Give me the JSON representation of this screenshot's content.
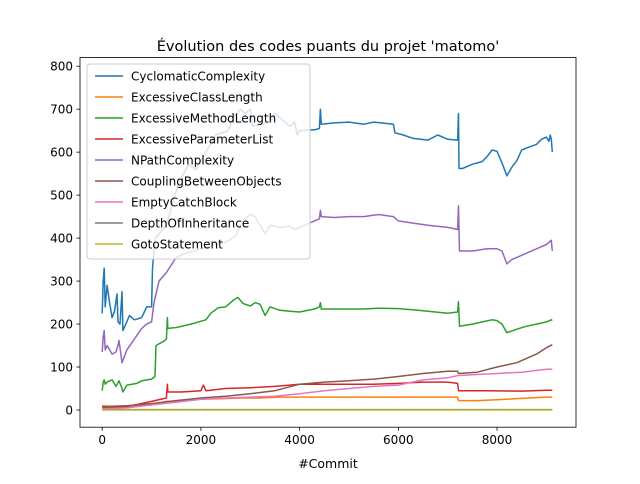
{
  "chart_data": {
    "type": "line",
    "title": "Évolution des codes puants du projet 'matomo'",
    "xlabel": "#Commit",
    "ylabel": "",
    "xlim": [
      -450,
      9600
    ],
    "ylim": [
      -40,
      820
    ],
    "x_ticks": [
      0,
      2000,
      4000,
      6000,
      8000
    ],
    "x_tick_labels": [
      "0",
      "2000",
      "4000",
      "6000",
      "8000"
    ],
    "y_ticks": [
      0,
      100,
      200,
      300,
      400,
      500,
      600,
      700,
      800
    ],
    "y_tick_labels": [
      "0",
      "100",
      "200",
      "300",
      "400",
      "500",
      "600",
      "700",
      "800"
    ],
    "grid": false,
    "legend_position": "top-left",
    "series": [
      {
        "name": "CyclomaticComplexity",
        "color": "#1f77b4",
        "points": [
          [
            0,
            225
          ],
          [
            20,
            300
          ],
          [
            40,
            330
          ],
          [
            60,
            240
          ],
          [
            100,
            290
          ],
          [
            150,
            250
          ],
          [
            200,
            215
          ],
          [
            250,
            230
          ],
          [
            300,
            270
          ],
          [
            320,
            205
          ],
          [
            360,
            200
          ],
          [
            400,
            275
          ],
          [
            420,
            185
          ],
          [
            480,
            200
          ],
          [
            550,
            220
          ],
          [
            650,
            210
          ],
          [
            800,
            215
          ],
          [
            900,
            240
          ],
          [
            1000,
            240
          ],
          [
            1020,
            330
          ],
          [
            1050,
            370
          ],
          [
            1080,
            400
          ],
          [
            1300,
            430
          ],
          [
            1400,
            470
          ],
          [
            1550,
            530
          ],
          [
            1700,
            560
          ],
          [
            1750,
            570
          ],
          [
            1900,
            560
          ],
          [
            2000,
            580
          ],
          [
            2150,
            610
          ],
          [
            2300,
            640
          ],
          [
            2550,
            650
          ],
          [
            2650,
            680
          ],
          [
            2800,
            700
          ],
          [
            2900,
            690
          ],
          [
            3000,
            700
          ],
          [
            3050,
            660
          ],
          [
            3200,
            665
          ],
          [
            3400,
            670
          ],
          [
            3500,
            690
          ],
          [
            3800,
            660
          ],
          [
            3900,
            670
          ],
          [
            3950,
            640
          ],
          [
            4000,
            650
          ],
          [
            4300,
            652
          ],
          [
            4400,
            655
          ],
          [
            4420,
            700
          ],
          [
            4440,
            665
          ],
          [
            4700,
            668
          ],
          [
            5000,
            670
          ],
          [
            5300,
            665
          ],
          [
            5500,
            670
          ],
          [
            5900,
            665
          ],
          [
            5930,
            645
          ],
          [
            6100,
            640
          ],
          [
            6300,
            632
          ],
          [
            6600,
            628
          ],
          [
            6800,
            640
          ],
          [
            7000,
            630
          ],
          [
            7200,
            628
          ],
          [
            7220,
            690
          ],
          [
            7230,
            562
          ],
          [
            7300,
            562
          ],
          [
            7500,
            572
          ],
          [
            7700,
            578
          ],
          [
            7800,
            590
          ],
          [
            7900,
            605
          ],
          [
            8000,
            602
          ],
          [
            8100,
            575
          ],
          [
            8200,
            545
          ],
          [
            8300,
            565
          ],
          [
            8400,
            580
          ],
          [
            8500,
            605
          ],
          [
            8600,
            610
          ],
          [
            8800,
            618
          ],
          [
            8900,
            630
          ],
          [
            9000,
            635
          ],
          [
            9050,
            625
          ],
          [
            9080,
            640
          ],
          [
            9100,
            630
          ],
          [
            9120,
            600
          ]
        ]
      },
      {
        "name": "ExcessiveClassLength",
        "color": "#ff7f0e",
        "points": [
          [
            0,
            10
          ],
          [
            200,
            8
          ],
          [
            500,
            10
          ],
          [
            800,
            10
          ],
          [
            1000,
            12
          ],
          [
            1300,
            20
          ],
          [
            1700,
            22
          ],
          [
            2000,
            25
          ],
          [
            2400,
            26
          ],
          [
            2800,
            28
          ],
          [
            3200,
            28
          ],
          [
            3600,
            30
          ],
          [
            4000,
            30
          ],
          [
            4500,
            30
          ],
          [
            5000,
            30
          ],
          [
            5500,
            30
          ],
          [
            6000,
            30
          ],
          [
            6500,
            30
          ],
          [
            7000,
            30
          ],
          [
            7200,
            30
          ],
          [
            7220,
            22
          ],
          [
            7600,
            22
          ],
          [
            8000,
            24
          ],
          [
            8500,
            27
          ],
          [
            9000,
            30
          ],
          [
            9120,
            30
          ]
        ]
      },
      {
        "name": "ExcessiveMethodLength",
        "color": "#2ca02c",
        "points": [
          [
            0,
            45
          ],
          [
            20,
            65
          ],
          [
            40,
            70
          ],
          [
            60,
            60
          ],
          [
            100,
            65
          ],
          [
            200,
            70
          ],
          [
            280,
            55
          ],
          [
            340,
            68
          ],
          [
            400,
            50
          ],
          [
            420,
            42
          ],
          [
            500,
            58
          ],
          [
            700,
            62
          ],
          [
            800,
            68
          ],
          [
            1000,
            72
          ],
          [
            1070,
            78
          ],
          [
            1090,
            150
          ],
          [
            1250,
            160
          ],
          [
            1300,
            165
          ],
          [
            1320,
            215
          ],
          [
            1330,
            190
          ],
          [
            1500,
            192
          ],
          [
            1800,
            200
          ],
          [
            2100,
            210
          ],
          [
            2200,
            225
          ],
          [
            2350,
            238
          ],
          [
            2500,
            240
          ],
          [
            2650,
            255
          ],
          [
            2750,
            262
          ],
          [
            2850,
            248
          ],
          [
            3000,
            242
          ],
          [
            3100,
            250
          ],
          [
            3200,
            246
          ],
          [
            3300,
            220
          ],
          [
            3400,
            240
          ],
          [
            3600,
            232
          ],
          [
            3800,
            230
          ],
          [
            4000,
            228
          ],
          [
            4300,
            235
          ],
          [
            4400,
            240
          ],
          [
            4420,
            250
          ],
          [
            4440,
            235
          ],
          [
            4800,
            235
          ],
          [
            5300,
            235
          ],
          [
            5600,
            237
          ],
          [
            6000,
            236
          ],
          [
            6400,
            232
          ],
          [
            7000,
            225
          ],
          [
            7200,
            228
          ],
          [
            7220,
            252
          ],
          [
            7240,
            195
          ],
          [
            7500,
            200
          ],
          [
            7700,
            205
          ],
          [
            7900,
            210
          ],
          [
            8000,
            208
          ],
          [
            8100,
            200
          ],
          [
            8200,
            180
          ],
          [
            8400,
            188
          ],
          [
            8600,
            195
          ],
          [
            8800,
            200
          ],
          [
            9000,
            205
          ],
          [
            9100,
            210
          ],
          [
            9120,
            208
          ]
        ]
      },
      {
        "name": "ExcessiveParameterList",
        "color": "#d62728",
        "points": [
          [
            0,
            5
          ],
          [
            500,
            8
          ],
          [
            1000,
            20
          ],
          [
            1300,
            28
          ],
          [
            1320,
            60
          ],
          [
            1330,
            42
          ],
          [
            1600,
            42
          ],
          [
            2000,
            45
          ],
          [
            2050,
            58
          ],
          [
            2100,
            45
          ],
          [
            2500,
            50
          ],
          [
            3000,
            52
          ],
          [
            3500,
            55
          ],
          [
            4000,
            60
          ],
          [
            4500,
            60
          ],
          [
            5000,
            60
          ],
          [
            5500,
            60
          ],
          [
            6000,
            62
          ],
          [
            6500,
            65
          ],
          [
            7000,
            65
          ],
          [
            7200,
            62
          ],
          [
            7220,
            45
          ],
          [
            7800,
            45
          ],
          [
            8500,
            44
          ],
          [
            9000,
            46
          ],
          [
            9120,
            46
          ]
        ]
      },
      {
        "name": "NPathComplexity",
        "color": "#9467bd",
        "points": [
          [
            0,
            135
          ],
          [
            20,
            170
          ],
          [
            40,
            185
          ],
          [
            60,
            140
          ],
          [
            100,
            150
          ],
          [
            200,
            130
          ],
          [
            280,
            135
          ],
          [
            320,
            150
          ],
          [
            340,
            162
          ],
          [
            400,
            110
          ],
          [
            500,
            140
          ],
          [
            800,
            190
          ],
          [
            900,
            200
          ],
          [
            1000,
            205
          ],
          [
            1050,
            250
          ],
          [
            1150,
            300
          ],
          [
            1300,
            320
          ],
          [
            1500,
            355
          ],
          [
            1700,
            365
          ],
          [
            2000,
            375
          ],
          [
            2300,
            385
          ],
          [
            2500,
            390
          ],
          [
            2700,
            405
          ],
          [
            2850,
            440
          ],
          [
            2900,
            445
          ],
          [
            3000,
            455
          ],
          [
            3100,
            450
          ],
          [
            3200,
            430
          ],
          [
            3300,
            410
          ],
          [
            3400,
            430
          ],
          [
            3600,
            425
          ],
          [
            3800,
            428
          ],
          [
            3900,
            420
          ],
          [
            4000,
            425
          ],
          [
            4300,
            440
          ],
          [
            4400,
            445
          ],
          [
            4420,
            465
          ],
          [
            4440,
            450
          ],
          [
            4700,
            448
          ],
          [
            5000,
            450
          ],
          [
            5300,
            450
          ],
          [
            5600,
            455
          ],
          [
            5900,
            450
          ],
          [
            6000,
            440
          ],
          [
            6300,
            435
          ],
          [
            6600,
            430
          ],
          [
            7000,
            425
          ],
          [
            7200,
            420
          ],
          [
            7220,
            475
          ],
          [
            7240,
            370
          ],
          [
            7500,
            370
          ],
          [
            7800,
            375
          ],
          [
            8000,
            375
          ],
          [
            8100,
            370
          ],
          [
            8200,
            340
          ],
          [
            8300,
            350
          ],
          [
            8500,
            360
          ],
          [
            8800,
            375
          ],
          [
            9000,
            385
          ],
          [
            9100,
            395
          ],
          [
            9120,
            370
          ]
        ]
      },
      {
        "name": "CouplingBetweenObjects",
        "color": "#8c564b",
        "points": [
          [
            0,
            8
          ],
          [
            500,
            10
          ],
          [
            1000,
            15
          ],
          [
            1500,
            22
          ],
          [
            2000,
            28
          ],
          [
            2500,
            32
          ],
          [
            3000,
            38
          ],
          [
            3500,
            45
          ],
          [
            4000,
            60
          ],
          [
            4500,
            65
          ],
          [
            5000,
            68
          ],
          [
            5500,
            72
          ],
          [
            6000,
            78
          ],
          [
            6500,
            85
          ],
          [
            7000,
            90
          ],
          [
            7200,
            90
          ],
          [
            7220,
            85
          ],
          [
            7600,
            88
          ],
          [
            8000,
            100
          ],
          [
            8400,
            110
          ],
          [
            8800,
            130
          ],
          [
            9000,
            145
          ],
          [
            9120,
            152
          ]
        ]
      },
      {
        "name": "EmptyCatchBlock",
        "color": "#e377c2",
        "points": [
          [
            0,
            3
          ],
          [
            500,
            5
          ],
          [
            1000,
            12
          ],
          [
            1500,
            18
          ],
          [
            2000,
            25
          ],
          [
            2500,
            28
          ],
          [
            3000,
            30
          ],
          [
            3500,
            32
          ],
          [
            4000,
            38
          ],
          [
            4500,
            45
          ],
          [
            5000,
            50
          ],
          [
            5500,
            55
          ],
          [
            6000,
            58
          ],
          [
            6500,
            70
          ],
          [
            7000,
            75
          ],
          [
            7200,
            80
          ],
          [
            7500,
            82
          ],
          [
            8000,
            85
          ],
          [
            8500,
            88
          ],
          [
            9000,
            95
          ],
          [
            9120,
            95
          ]
        ]
      },
      {
        "name": "DepthOfInheritance",
        "color": "#7f7f7f",
        "points": [
          [
            0,
            1
          ],
          [
            3000,
            1
          ],
          [
            6000,
            1
          ],
          [
            9120,
            1
          ]
        ]
      },
      {
        "name": "GotoStatement",
        "color": "#bcbd22",
        "points": [
          [
            0,
            0
          ],
          [
            3000,
            0
          ],
          [
            6000,
            0
          ],
          [
            9120,
            0
          ]
        ]
      }
    ]
  }
}
